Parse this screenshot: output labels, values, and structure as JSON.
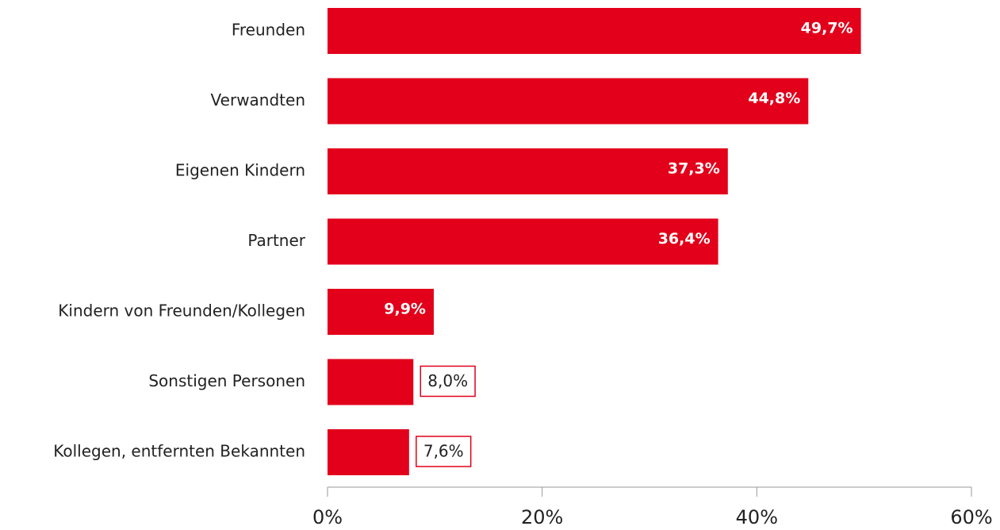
{
  "chart_data": {
    "type": "bar",
    "orientation": "horizontal",
    "categories": [
      "Freunden",
      "Verwandten",
      "Eigenen Kindern",
      "Partner",
      "Kindern von Freunden/Kollegen",
      "Sonstigen Personen",
      "Kollegen, entfernten Bekannten"
    ],
    "values": [
      49.7,
      44.8,
      37.3,
      36.4,
      9.9,
      8.0,
      7.6
    ],
    "value_labels": [
      "49,7%",
      "44,8%",
      "37,3%",
      "36,4%",
      "9,9%",
      "8,0%",
      "7,6%"
    ],
    "color": "#e2001a",
    "xlim": [
      0,
      60
    ],
    "xticks": [
      {
        "value": 0,
        "label": "0%"
      },
      {
        "value": 20,
        "label": "20%"
      },
      {
        "value": 40,
        "label": "40%"
      },
      {
        "value": 60,
        "label": "60%"
      }
    ],
    "grid": false
  }
}
